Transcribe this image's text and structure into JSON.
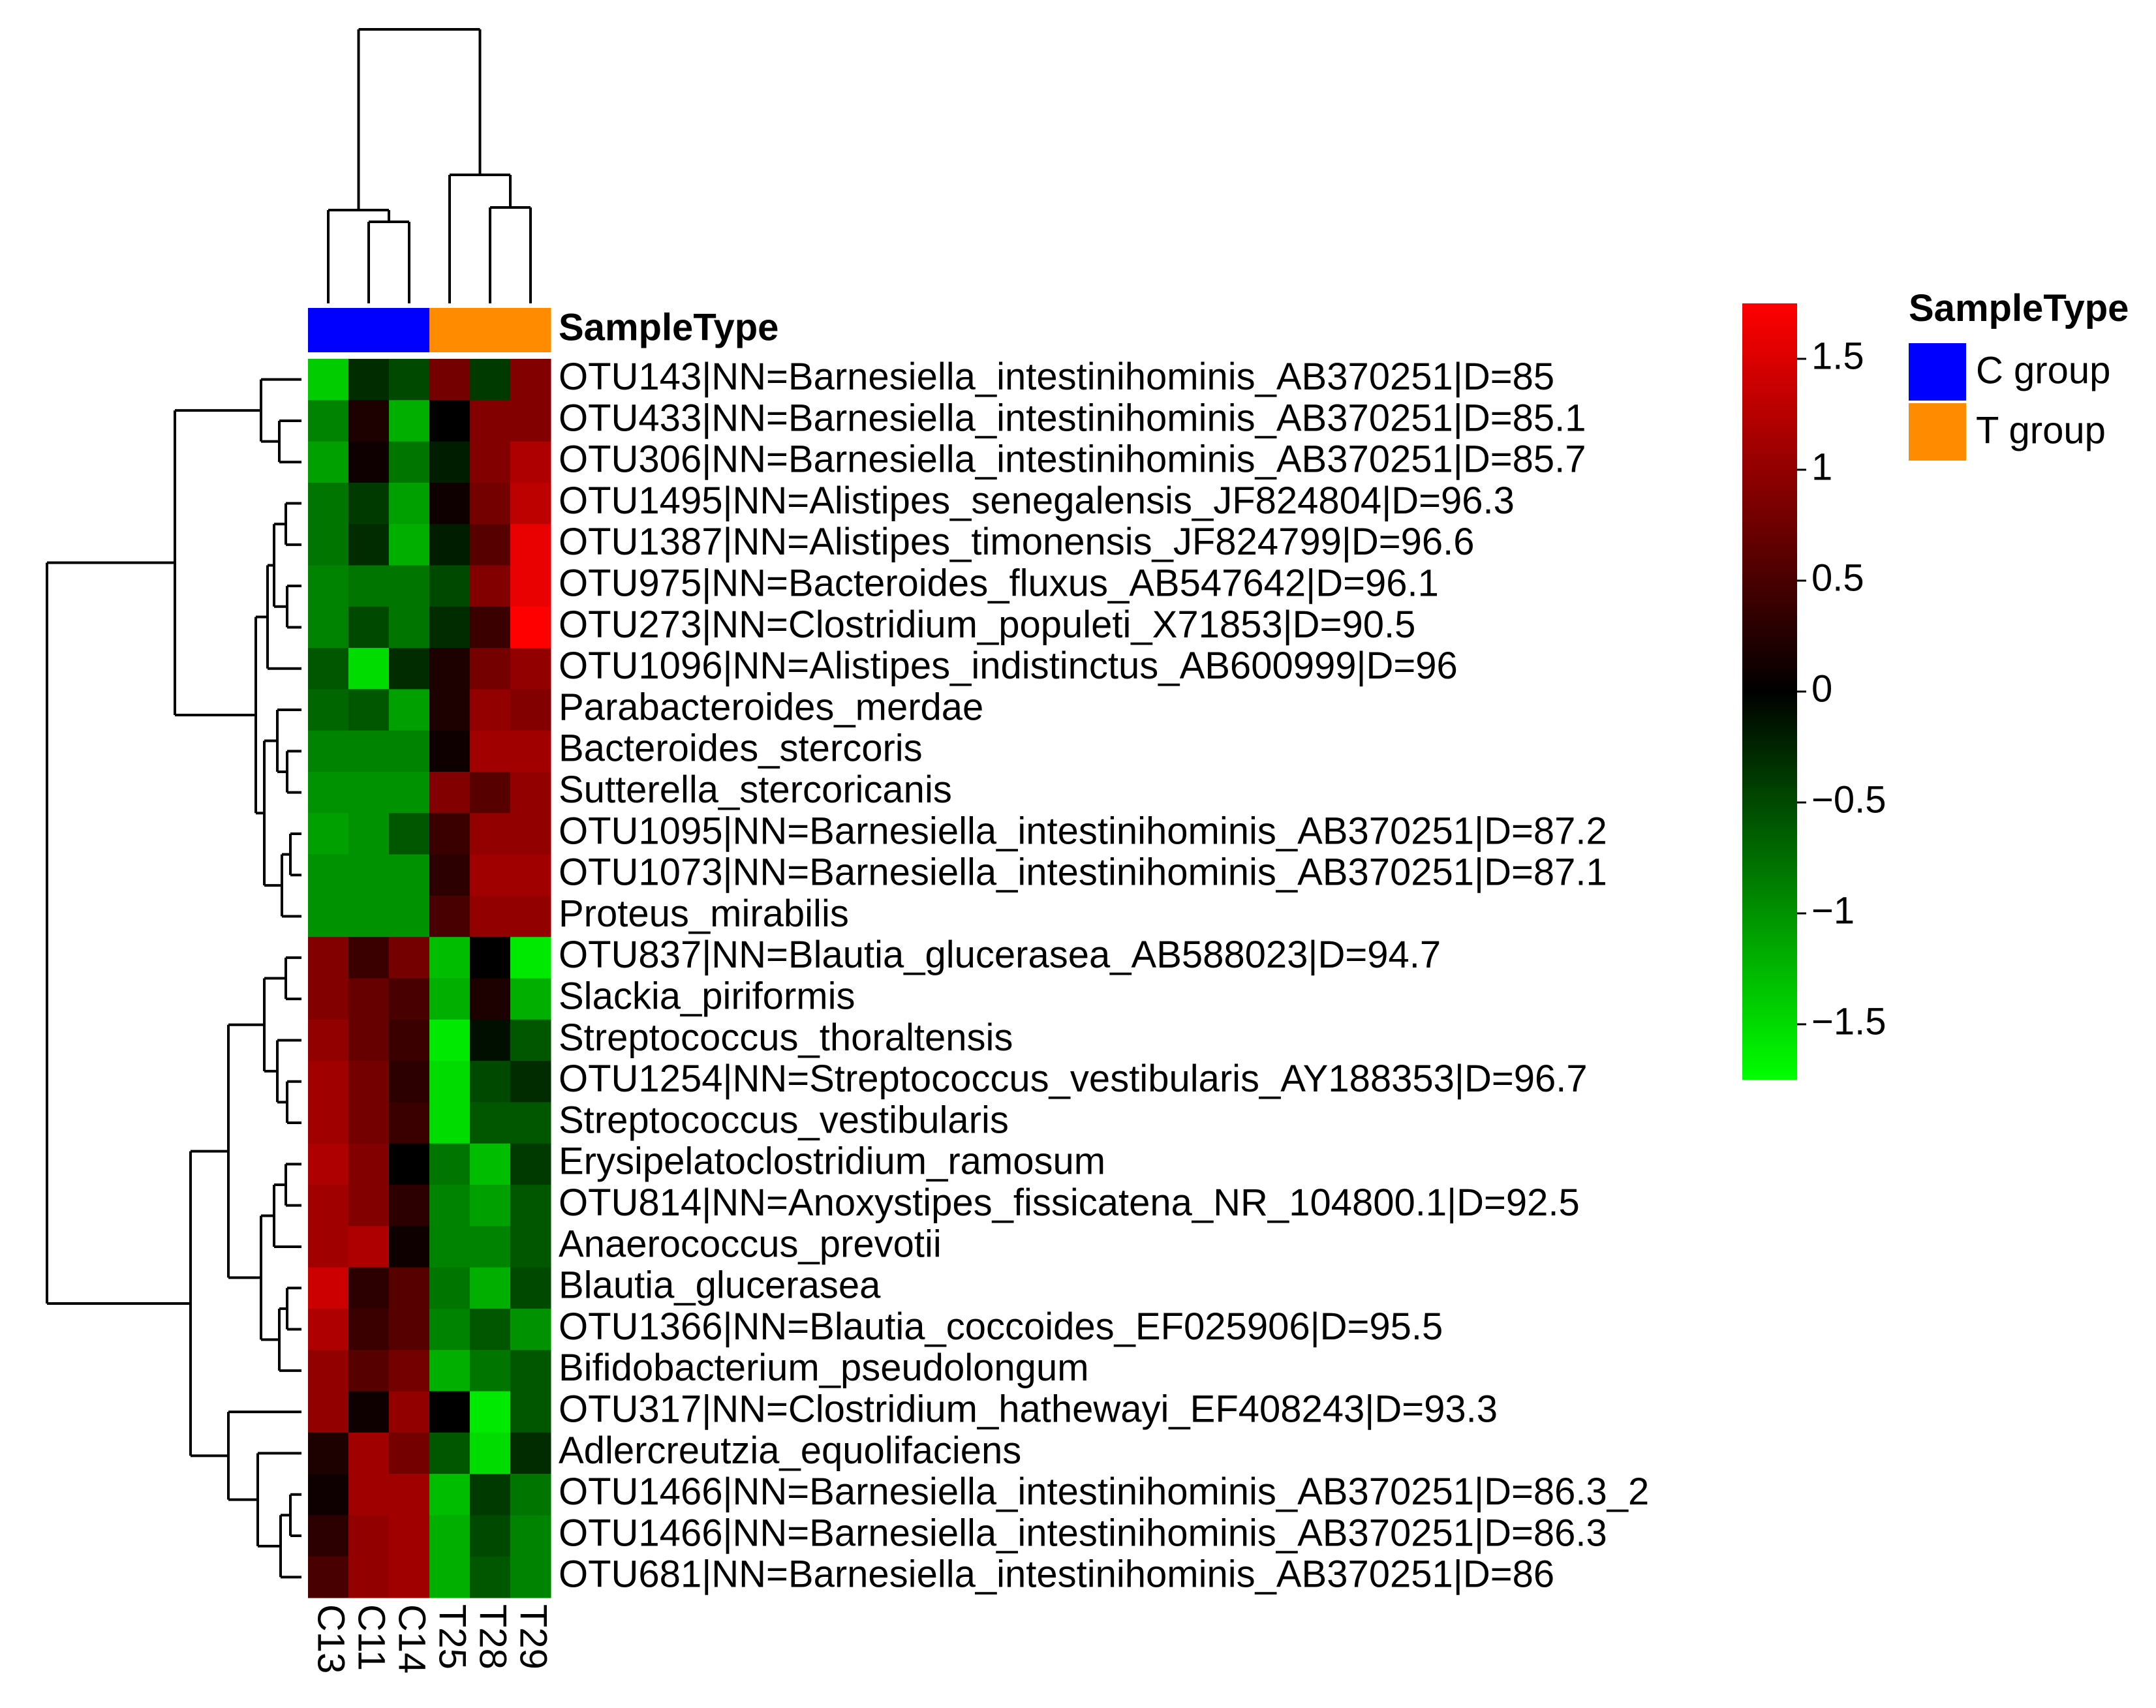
{
  "chart_data": {
    "type": "heatmap",
    "title": "",
    "columns": [
      "C13",
      "C11",
      "C14",
      "T25",
      "T28",
      "T29"
    ],
    "column_groups": [
      "C group",
      "C group",
      "C group",
      "T group",
      "T group",
      "T group"
    ],
    "annotation_name": "SampleType",
    "annotation_legend": {
      "title": "SampleType",
      "items": [
        {
          "label": "C group",
          "color": "#0000ff"
        },
        {
          "label": "T group",
          "color": "#ff8c00"
        }
      ]
    },
    "color_scale": {
      "low": "#00ff00",
      "mid": "#000000",
      "high": "#ff0000",
      "min": -1.75,
      "max": 1.75,
      "ticks": [
        {
          "value": 1.5,
          "label": "1.5"
        },
        {
          "value": 1,
          "label": "1"
        },
        {
          "value": 0.5,
          "label": "0.5"
        },
        {
          "value": 0,
          "label": "0"
        },
        {
          "value": -0.5,
          "label": "−0.5"
        },
        {
          "value": -1,
          "label": "−1"
        },
        {
          "value": -1.5,
          "label": "−1.5"
        }
      ]
    },
    "rows": [
      "OTU143|NN=Barnesiella_intestinihominis_AB370251|D=85",
      "OTU433|NN=Barnesiella_intestinihominis_AB370251|D=85.1",
      "OTU306|NN=Barnesiella_intestinihominis_AB370251|D=85.7",
      "OTU1495|NN=Alistipes_senegalensis_JF824804|D=96.3",
      "OTU1387|NN=Alistipes_timonensis_JF824799|D=96.6",
      "OTU975|NN=Bacteroides_fluxus_AB547642|D=96.1",
      "OTU273|NN=Clostridium_populeti_X71853|D=90.5",
      "OTU1096|NN=Alistipes_indistinctus_AB600999|D=96",
      "Parabacteroides_merdae",
      "Bacteroides_stercoris",
      "Sutterella_stercoricanis",
      "OTU1095|NN=Barnesiella_intestinihominis_AB370251|D=87.2",
      "OTU1073|NN=Barnesiella_intestinihominis_AB370251|D=87.1",
      "Proteus_mirabilis",
      "OTU837|NN=Blautia_glucerasea_AB588023|D=94.7",
      "Slackia_piriformis",
      "Streptococcus_thoraltensis",
      "OTU1254|NN=Streptococcus_vestibularis_AY188353|D=96.7",
      "Streptococcus_vestibularis",
      "Erysipelatoclostridium_ramosum",
      "OTU814|NN=Anoxystipes_fissicatena_NR_104800.1|D=92.5",
      "Anaerococcus_prevotii",
      "Blautia_glucerasea",
      "OTU1366|NN=Blautia_coccoides_EF025906|D=95.5",
      "Bifidobacterium_pseudolongum",
      "OTU317|NN=Clostridium_hathewayi_EF408243|D=93.3",
      "Adlercreutzia_equolifaciens",
      "OTU1466|NN=Barnesiella_intestinihominis_AB370251|D=86.3_2",
      "OTU1466|NN=Barnesiella_intestinihominis_AB370251|D=86.3",
      "OTU681|NN=Barnesiella_intestinihominis_AB370251|D=86"
    ],
    "values": [
      [
        -1.4,
        -0.3,
        -0.5,
        0.8,
        -0.4,
        0.9
      ],
      [
        -0.9,
        0.2,
        -1.2,
        0.0,
        0.9,
        0.9
      ],
      [
        -1.1,
        0.1,
        -0.8,
        -0.2,
        0.9,
        1.2
      ],
      [
        -0.8,
        -0.4,
        -1.1,
        0.1,
        0.8,
        1.3
      ],
      [
        -0.8,
        -0.3,
        -1.2,
        -0.2,
        0.6,
        1.6
      ],
      [
        -0.9,
        -0.8,
        -0.8,
        -0.5,
        0.9,
        1.6
      ],
      [
        -0.9,
        -0.5,
        -0.8,
        -0.3,
        0.4,
        1.8
      ],
      [
        -0.6,
        -1.5,
        -0.3,
        0.2,
        0.8,
        1.0
      ],
      [
        -0.7,
        -0.6,
        -1.1,
        0.2,
        1.0,
        0.9
      ],
      [
        -0.9,
        -0.9,
        -0.9,
        0.1,
        1.1,
        1.1
      ],
      [
        -1.0,
        -1.0,
        -1.0,
        0.9,
        0.6,
        1.0
      ],
      [
        -1.1,
        -1.0,
        -0.6,
        0.4,
        1.0,
        1.0
      ],
      [
        -1.0,
        -1.0,
        -1.0,
        0.3,
        1.1,
        1.1
      ],
      [
        -1.0,
        -1.0,
        -1.0,
        0.5,
        1.0,
        1.0
      ],
      [
        0.9,
        0.4,
        0.8,
        -1.3,
        0.0,
        -1.6
      ],
      [
        0.9,
        0.7,
        0.5,
        -1.2,
        0.2,
        -1.2
      ],
      [
        1.0,
        0.7,
        0.4,
        -1.6,
        -0.1,
        -0.6
      ],
      [
        1.1,
        0.8,
        0.3,
        -1.5,
        -0.5,
        -0.3
      ],
      [
        1.1,
        0.8,
        0.4,
        -1.5,
        -0.6,
        -0.6
      ],
      [
        1.2,
        0.9,
        0.0,
        -0.8,
        -1.3,
        -0.4
      ],
      [
        1.1,
        0.9,
        0.3,
        -0.9,
        -1.1,
        -0.6
      ],
      [
        1.1,
        1.2,
        0.1,
        -0.9,
        -0.9,
        -0.6
      ],
      [
        1.4,
        0.3,
        0.6,
        -0.8,
        -1.2,
        -0.5
      ],
      [
        1.2,
        0.4,
        0.6,
        -0.9,
        -0.6,
        -1.0
      ],
      [
        1.0,
        0.6,
        0.8,
        -1.2,
        -0.8,
        -0.6
      ],
      [
        1.0,
        0.1,
        1.0,
        0.0,
        -1.6,
        -0.6
      ],
      [
        0.2,
        1.1,
        0.8,
        -0.6,
        -1.5,
        -0.3
      ],
      [
        0.1,
        1.1,
        1.1,
        -1.3,
        -0.4,
        -0.8
      ],
      [
        0.3,
        1.0,
        1.1,
        -1.2,
        -0.5,
        -0.9
      ],
      [
        0.5,
        1.0,
        1.1,
        -1.2,
        -0.6,
        -0.9
      ]
    ]
  }
}
